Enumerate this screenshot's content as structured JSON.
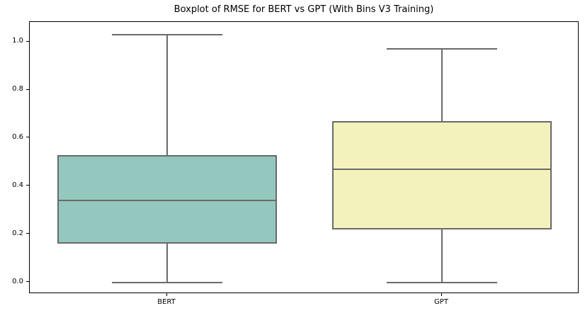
{
  "chart_data": {
    "type": "boxplot",
    "title": "Boxplot of RMSE for BERT vs GPT (With Bins V3 Training)",
    "categories": [
      "BERT",
      "GPT"
    ],
    "boxes": [
      {
        "label": "BERT",
        "min": 0.0,
        "q1": 0.16,
        "median": 0.34,
        "q3": 0.53,
        "max": 1.03,
        "fill": "#94c8bf"
      },
      {
        "label": "GPT",
        "min": 0.0,
        "q1": 0.22,
        "median": 0.47,
        "q3": 0.67,
        "max": 0.97,
        "fill": "#f4f2bc"
      }
    ],
    "ytick_labels": [
      "0.0",
      "0.2",
      "0.4",
      "0.6",
      "0.8",
      "1.0"
    ],
    "ytick_values": [
      0.0,
      0.2,
      0.4,
      0.6,
      0.8,
      1.0
    ],
    "ylim": [
      -0.048,
      1.083
    ],
    "xlim": [
      -0.5,
      1.5
    ],
    "positions": [
      0,
      1
    ],
    "box_width": 0.8,
    "cap_width": 0.4,
    "line_color": "#6a6a6a",
    "spine_color": "#000000",
    "xlabel": "",
    "ylabel": "",
    "grid": false,
    "legend_position": "none"
  }
}
